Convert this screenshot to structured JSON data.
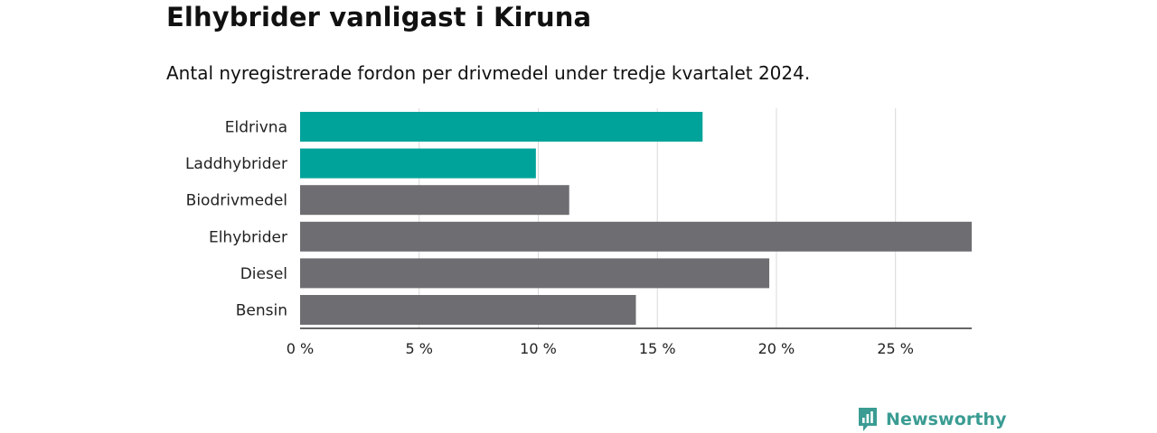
{
  "header": {
    "title": "Elhybrider vanligast i Kiruna",
    "subtitle": "Antal nyregistrerade fordon per drivmedel under tredje kvartalet 2024."
  },
  "chart_data": {
    "type": "bar",
    "orientation": "horizontal",
    "categories": [
      "Eldrivna",
      "Laddhybrider",
      "Biodrivmedel",
      "Elhybrider",
      "Diesel",
      "Bensin"
    ],
    "values": [
      16.9,
      9.9,
      11.3,
      28.2,
      19.7,
      14.1
    ],
    "colors": [
      "#00a39a",
      "#00a39a",
      "#6e6d72",
      "#6e6d72",
      "#6e6d72",
      "#6e6d72"
    ],
    "xticks": [
      0,
      5,
      10,
      15,
      20,
      25
    ],
    "xtick_labels": [
      "0 %",
      "5 %",
      "10 %",
      "15 %",
      "20 %",
      "25 %"
    ],
    "xlim": [
      0,
      28.2
    ],
    "grid": true,
    "xlabel": "",
    "ylabel": ""
  },
  "brand": {
    "name": "Newsworthy",
    "color": "#3a9c93",
    "icon": "bar-chart-speech-bubble-icon"
  }
}
